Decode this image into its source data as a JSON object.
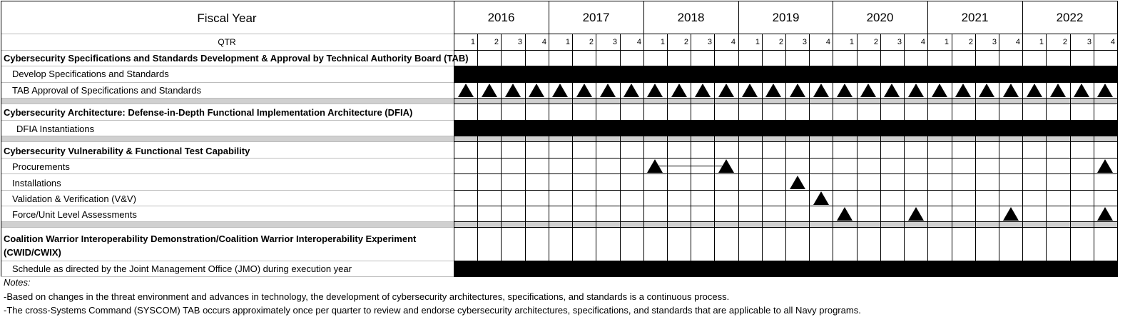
{
  "header": {
    "fiscal_year_label": "Fiscal Year",
    "qtr_label": "QTR",
    "years": [
      "2016",
      "2017",
      "2018",
      "2019",
      "2020",
      "2021",
      "2022"
    ],
    "quarters": [
      "1",
      "2",
      "3",
      "4"
    ]
  },
  "sections": [
    {
      "title": "Cybersecurity Specifications and Standards Development & Approval by Technical Authority Board (TAB)",
      "rows": [
        {
          "label": "Develop Specifications and Standards",
          "bar": true,
          "milestones": []
        },
        {
          "label": "TAB Approval of Specifications and Standards",
          "bar": false,
          "milestones": [
            1,
            2,
            3,
            4,
            5,
            6,
            7,
            8,
            9,
            10,
            11,
            12,
            13,
            14,
            15,
            16,
            17,
            18,
            19,
            20,
            21,
            22,
            23,
            24,
            25,
            26,
            27,
            28
          ]
        }
      ]
    },
    {
      "title": "Cybersecurity Architecture: Defense-in-Depth Functional Implementation Architecture (DFIA)",
      "rows": [
        {
          "label": "DFIA Instantiations",
          "bar": true,
          "milestones": []
        }
      ]
    },
    {
      "title": "Cybersecurity Vulnerability & Functional Test Capability",
      "rows": [
        {
          "label": "Procurements",
          "bar": false,
          "milestones": [
            9,
            12,
            28
          ],
          "connector": [
            9,
            12
          ]
        },
        {
          "label": "Installations",
          "bar": false,
          "milestones": [
            15
          ]
        },
        {
          "label": "Validation & Verification (V&V)",
          "bar": false,
          "milestones": [
            16
          ]
        },
        {
          "label": "Force/Unit Level Assessments",
          "bar": false,
          "milestones": [
            17,
            20,
            24,
            28
          ]
        }
      ]
    },
    {
      "title_line1": "Coalition Warrior Interoperability Demonstration/Coalition Warrior Interoperability Experiment",
      "title_line2": "(CWID/CWIX)",
      "rows": [
        {
          "label": "Schedule as directed by the Joint Management Office (JMO) during execution year",
          "bar": true,
          "milestones": []
        }
      ]
    }
  ],
  "notes": {
    "heading": "Notes:",
    "lines": [
      "-Based on changes in the threat environment and advances in technology, the development of cybersecurity architectures, specifications, and standards is a continuous process.",
      "-The cross-Systems Command (SYSCOM) TAB occurs approximately once per quarter to review and endorse cybersecurity architectures, specifications, and standards that are applicable to all Navy programs."
    ]
  }
}
